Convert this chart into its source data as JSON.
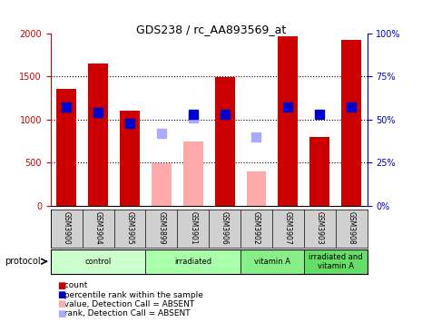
{
  "title": "GDS238 / rc_AA893569_at",
  "samples": [
    "GSM3900",
    "GSM3904",
    "GSM3905",
    "GSM3899",
    "GSM3901",
    "GSM3906",
    "GSM3902",
    "GSM3907",
    "GSM3903",
    "GSM3908"
  ],
  "groups": [
    {
      "label": "control",
      "indices": [
        0,
        1,
        2
      ],
      "color": "#ccffcc"
    },
    {
      "label": "irradiated",
      "indices": [
        3,
        4,
        5
      ],
      "color": "#aaffaa"
    },
    {
      "label": "vitamin A",
      "indices": [
        6,
        7
      ],
      "color": "#88ee88"
    },
    {
      "label": "irradiated and\nvitamin A",
      "indices": [
        8,
        9
      ],
      "color": "#66dd66"
    }
  ],
  "counts": [
    1350,
    1650,
    1100,
    null,
    null,
    1490,
    null,
    1960,
    800,
    1920
  ],
  "ranks": [
    1140,
    1080,
    960,
    null,
    1060,
    1060,
    null,
    1140,
    1060,
    1140
  ],
  "absent_values": [
    null,
    null,
    null,
    490,
    750,
    null,
    400,
    null,
    null,
    null
  ],
  "absent_ranks": [
    null,
    null,
    null,
    840,
    1020,
    null,
    800,
    null,
    null,
    null
  ],
  "ylim_left": [
    0,
    2000
  ],
  "ylim_right": [
    0,
    100
  ],
  "yticks_left": [
    0,
    500,
    1000,
    1500,
    2000
  ],
  "yticks_right": [
    0,
    25,
    50,
    75,
    100
  ],
  "ytick_labels_left": [
    "0",
    "500",
    "1000",
    "1500",
    "2000"
  ],
  "ytick_labels_right": [
    "0%",
    "25%",
    "50%",
    "75%",
    "100%"
  ],
  "bar_width": 0.35,
  "count_color": "#cc0000",
  "rank_color": "#0000cc",
  "absent_value_color": "#ffaaaa",
  "absent_rank_color": "#aaaaff",
  "bg_color": "#ffffff",
  "plot_bg": "#ffffff",
  "grid_color": "#000000",
  "tick_color_left": "#cc0000",
  "tick_color_right": "#0000cc"
}
